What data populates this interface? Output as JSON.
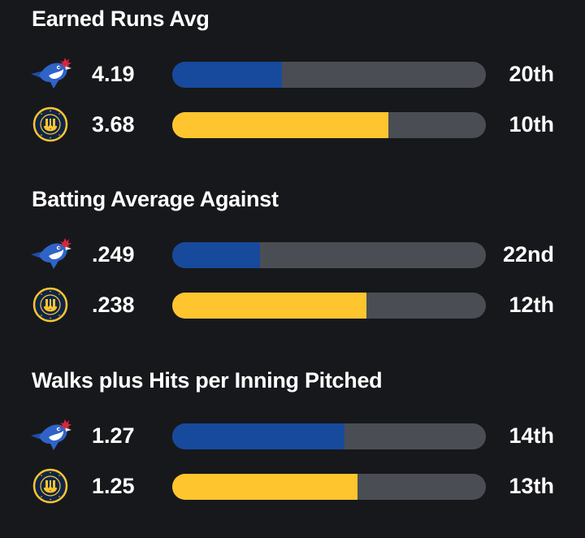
{
  "colors": {
    "background": "#17181b",
    "track": "#4a4e54",
    "blue_jays": "#174a9c",
    "brewers": "#ffc52f"
  },
  "teams": {
    "blue_jays": {
      "logo": "blue-jays-logo"
    },
    "brewers": {
      "logo": "brewers-logo",
      "logo_ring_text": "MILWAUKEE BREWERS"
    }
  },
  "sections": [
    {
      "title": "Earned Runs Avg",
      "rows": [
        {
          "team": "blue_jays",
          "value": "4.19",
          "rank": "20th",
          "fill_fraction": 0.35
        },
        {
          "team": "brewers",
          "value": "3.68",
          "rank": "10th",
          "fill_fraction": 0.69
        }
      ]
    },
    {
      "title": "Batting Average Against",
      "rows": [
        {
          "team": "blue_jays",
          "value": ".249",
          "rank": "22nd",
          "fill_fraction": 0.28
        },
        {
          "team": "brewers",
          "value": ".238",
          "rank": "12th",
          "fill_fraction": 0.62
        }
      ]
    },
    {
      "title": "Walks plus Hits per Inning Pitched",
      "rows": [
        {
          "team": "blue_jays",
          "value": "1.27",
          "rank": "14th",
          "fill_fraction": 0.55
        },
        {
          "team": "brewers",
          "value": "1.25",
          "rank": "13th",
          "fill_fraction": 0.59
        }
      ]
    }
  ]
}
